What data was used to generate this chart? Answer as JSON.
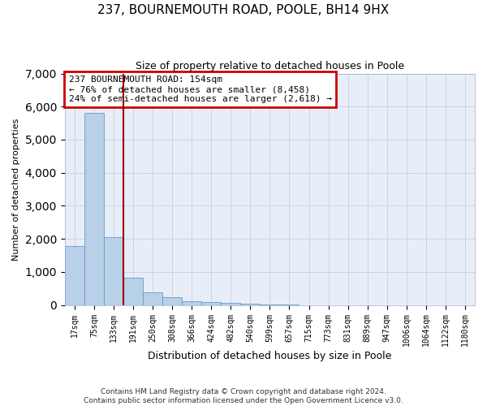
{
  "title": "237, BOURNEMOUTH ROAD, POOLE, BH14 9HX",
  "subtitle": "Size of property relative to detached houses in Poole",
  "xlabel": "Distribution of detached houses by size in Poole",
  "ylabel": "Number of detached properties",
  "bar_labels": [
    "17sqm",
    "75sqm",
    "133sqm",
    "191sqm",
    "250sqm",
    "308sqm",
    "366sqm",
    "424sqm",
    "482sqm",
    "540sqm",
    "599sqm",
    "657sqm",
    "715sqm",
    "773sqm",
    "831sqm",
    "889sqm",
    "947sqm",
    "1006sqm",
    "1064sqm",
    "1122sqm",
    "1180sqm"
  ],
  "bar_values": [
    1790,
    5800,
    2060,
    820,
    380,
    235,
    125,
    85,
    75,
    28,
    4,
    4,
    0,
    0,
    0,
    0,
    0,
    0,
    0,
    0,
    0
  ],
  "bar_color": "#b8d0e8",
  "bar_edge_color": "#6699cc",
  "property_line_x": 2.5,
  "annotation_text": "237 BOURNEMOUTH ROAD: 154sqm\n← 76% of detached houses are smaller (8,458)\n24% of semi-detached houses are larger (2,618) →",
  "annotation_box_color": "#ffffff",
  "annotation_box_edge": "#cc0000",
  "vline_color": "#990000",
  "grid_color": "#c8d4e8",
  "bg_color": "#e8eef8",
  "footer_line1": "Contains HM Land Registry data © Crown copyright and database right 2024.",
  "footer_line2": "Contains public sector information licensed under the Open Government Licence v3.0.",
  "ylim": [
    0,
    7000
  ],
  "yticks": [
    0,
    1000,
    2000,
    3000,
    4000,
    5000,
    6000,
    7000
  ]
}
